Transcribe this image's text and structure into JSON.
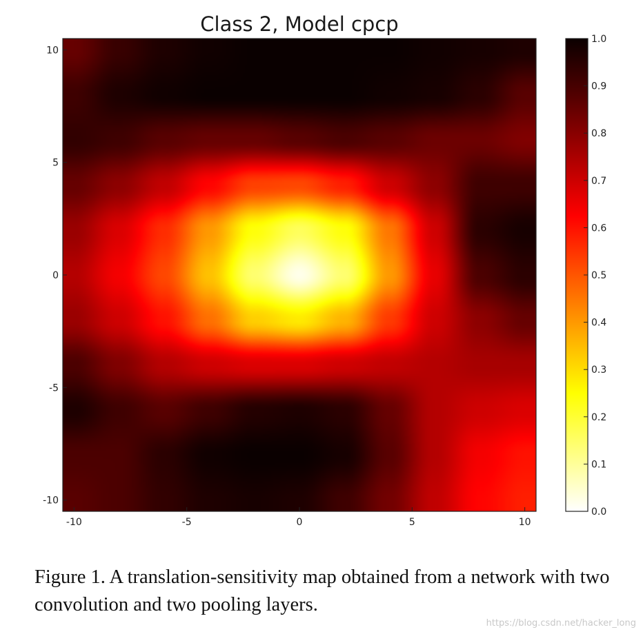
{
  "chart_data": {
    "type": "heatmap",
    "title": "Class 2, Model cpcp",
    "xlim": [
      -10.5,
      10.5
    ],
    "ylim": [
      -10.5,
      10.5
    ],
    "xticks": [
      -10,
      -5,
      0,
      5,
      10
    ],
    "xtick_labels": [
      "-10",
      "-5",
      "0",
      "5",
      "10"
    ],
    "yticks": [
      10,
      5,
      0,
      -5,
      -10
    ],
    "ytick_labels": [
      "10",
      "5",
      "0",
      "-5",
      "-10"
    ],
    "colormap": "hot_r",
    "colorbar": {
      "range": [
        0.0,
        1.0
      ],
      "ticks": [
        1.0,
        0.9,
        0.8,
        0.7,
        0.6,
        0.5,
        0.4,
        0.3,
        0.2,
        0.1,
        0.0
      ],
      "tick_labels": [
        "1.0",
        "0.9",
        "0.8",
        "0.7",
        "0.6",
        "0.5",
        "0.4",
        "0.3",
        "0.2",
        "0.1",
        "0.0"
      ]
    },
    "grid_x": [
      -10,
      -8,
      -6,
      -4,
      -2,
      0,
      2,
      4,
      6,
      8,
      10
    ],
    "grid_y": [
      10,
      8,
      6,
      4,
      2,
      0,
      -2,
      -4,
      -6,
      -8,
      -10
    ],
    "values": [
      [
        0.86,
        0.93,
        0.97,
        0.99,
        1.0,
        1.0,
        1.0,
        1.0,
        0.99,
        0.98,
        0.97
      ],
      [
        0.92,
        0.97,
        0.99,
        1.0,
        1.0,
        1.0,
        1.0,
        0.99,
        0.98,
        0.95,
        0.88
      ],
      [
        0.94,
        0.92,
        0.88,
        0.86,
        0.86,
        0.88,
        0.9,
        0.88,
        0.85,
        0.85,
        0.82
      ],
      [
        0.86,
        0.8,
        0.72,
        0.62,
        0.53,
        0.52,
        0.58,
        0.7,
        0.8,
        0.92,
        0.92
      ],
      [
        0.78,
        0.68,
        0.56,
        0.4,
        0.24,
        0.16,
        0.24,
        0.45,
        0.7,
        0.95,
        0.98
      ],
      [
        0.74,
        0.64,
        0.52,
        0.34,
        0.14,
        0.02,
        0.14,
        0.4,
        0.66,
        0.9,
        0.95
      ],
      [
        0.78,
        0.7,
        0.6,
        0.46,
        0.32,
        0.28,
        0.36,
        0.54,
        0.7,
        0.8,
        0.86
      ],
      [
        0.9,
        0.82,
        0.74,
        0.7,
        0.68,
        0.68,
        0.7,
        0.72,
        0.74,
        0.76,
        0.76
      ],
      [
        0.97,
        0.92,
        0.88,
        0.92,
        0.96,
        0.97,
        0.95,
        0.86,
        0.74,
        0.7,
        0.68
      ],
      [
        0.9,
        0.9,
        0.95,
        0.99,
        1.0,
        1.0,
        0.98,
        0.88,
        0.74,
        0.64,
        0.6
      ],
      [
        0.88,
        0.9,
        0.94,
        0.97,
        0.98,
        0.97,
        0.92,
        0.84,
        0.72,
        0.62,
        0.58
      ]
    ]
  },
  "caption": "Figure 1. A translation-sensitivity map obtained from a network with two convolution and two pooling layers.",
  "watermark": "https://blog.csdn.net/hacker_long"
}
